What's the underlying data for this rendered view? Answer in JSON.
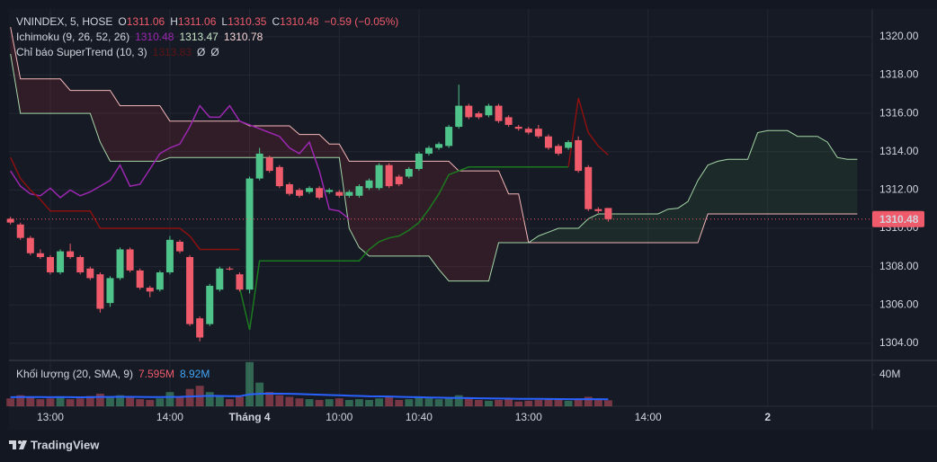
{
  "header": {
    "symbol": "VNINDEX, 5, HOSE",
    "ohlc_labels": [
      "O",
      "H",
      "L",
      "C"
    ],
    "change": "−0.59 (−0.05%)"
  },
  "footer": {
    "brand": "TradingView"
  },
  "chart_data": [
    {
      "type": "candlestick",
      "up_color": "#4fc48a",
      "down_color": "#f05b6b",
      "open": [
        1310.5,
        1310.2,
        1309.5,
        1308.7,
        1308.5,
        1307.7,
        1308.8,
        1308.5,
        1307.9,
        1307.6,
        1306.1,
        1307.4,
        1308.9,
        1307.8,
        1306.9,
        1306.8,
        1307.7,
        1309.3,
        1308.5,
        1305.3,
        1305.0,
        1306.8,
        1307.9,
        1307.6,
        1306.8,
        1312.6,
        1313.7,
        1313.2,
        1312.3,
        1312.0,
        1311.9,
        1312.1,
        1311.9,
        1311.9,
        1311.7,
        1311.7,
        1312.1,
        1312.1,
        1313.3,
        1312.7,
        1312.7,
        1313.1,
        1313.9,
        1314.2,
        1314.3,
        1315.3,
        1316.4,
        1316.0,
        1315.9,
        1316.4,
        1315.8,
        1315.3,
        1315.2,
        1315.2,
        1314.8,
        1314.3,
        1314.2,
        1314.6,
        1313.2,
        1311.0,
        1311.06
      ],
      "high": [
        1310.6,
        1310.3,
        1309.6,
        1308.9,
        1308.6,
        1308.9,
        1309.2,
        1308.6,
        1308.0,
        1307.7,
        1307.5,
        1309.0,
        1309.0,
        1307.9,
        1307.0,
        1307.8,
        1309.6,
        1309.4,
        1308.6,
        1305.4,
        1307.1,
        1308.0,
        1308.0,
        1307.7,
        1312.7,
        1314.2,
        1313.8,
        1313.3,
        1312.4,
        1312.1,
        1312.2,
        1312.2,
        1312.1,
        1312.0,
        1312.0,
        1312.3,
        1312.6,
        1313.4,
        1313.4,
        1312.8,
        1313.2,
        1314.0,
        1314.3,
        1314.5,
        1315.4,
        1317.5,
        1316.5,
        1316.1,
        1316.5,
        1316.5,
        1315.9,
        1315.4,
        1315.3,
        1315.4,
        1314.9,
        1314.4,
        1314.6,
        1314.8,
        1313.3,
        1311.1,
        1311.06
      ],
      "low": [
        1310.2,
        1309.4,
        1308.6,
        1308.4,
        1307.6,
        1307.6,
        1308.4,
        1307.6,
        1307.3,
        1305.6,
        1305.9,
        1307.3,
        1307.7,
        1306.8,
        1306.4,
        1306.7,
        1307.6,
        1308.7,
        1304.9,
        1304.1,
        1304.9,
        1306.7,
        1307.8,
        1306.7,
        1306.6,
        1312.5,
        1312.9,
        1312.1,
        1311.7,
        1311.6,
        1311.8,
        1311.5,
        1311.8,
        1311.6,
        1311.6,
        1311.6,
        1312.0,
        1312.0,
        1312.1,
        1312.2,
        1312.6,
        1313.0,
        1313.8,
        1314.1,
        1314.2,
        1315.2,
        1315.7,
        1315.7,
        1315.8,
        1315.5,
        1315.3,
        1315.1,
        1314.9,
        1314.7,
        1314.1,
        1313.8,
        1314.1,
        1312.9,
        1310.9,
        1310.8,
        1310.35
      ],
      "close": [
        1310.3,
        1309.5,
        1308.7,
        1308.5,
        1307.7,
        1308.8,
        1308.5,
        1307.7,
        1307.4,
        1305.8,
        1307.4,
        1308.9,
        1307.8,
        1306.9,
        1306.7,
        1307.7,
        1309.4,
        1308.8,
        1305.0,
        1304.3,
        1307.0,
        1307.9,
        1307.85,
        1306.8,
        1312.6,
        1313.9,
        1313.0,
        1312.2,
        1311.8,
        1311.7,
        1312.1,
        1311.6,
        1312.0,
        1311.7,
        1311.9,
        1312.2,
        1312.5,
        1313.3,
        1312.2,
        1312.3,
        1313.1,
        1313.9,
        1314.2,
        1314.4,
        1315.3,
        1316.4,
        1315.8,
        1315.8,
        1316.4,
        1315.6,
        1315.4,
        1315.2,
        1315.0,
        1314.8,
        1314.2,
        1313.9,
        1314.5,
        1313.0,
        1311.0,
        1310.9,
        1310.48
      ],
      "xlim": [
        -0.15,
        86.5
      ],
      "xticks": [
        {
          "value": 4,
          "label": "13:00"
        },
        {
          "value": 16,
          "label": "14:00"
        },
        {
          "value": 24,
          "label": "Tháng 4"
        },
        {
          "value": 33,
          "label": "10:00"
        },
        {
          "value": 41,
          "label": "10:40"
        },
        {
          "value": 52,
          "label": "13:00"
        },
        {
          "value": 64,
          "label": "14:00"
        },
        {
          "value": 76,
          "label": "2"
        }
      ],
      "ylim": [
        1303.15,
        1321.45
      ],
      "yticks": [
        {
          "value": 1304,
          "label": "1304.00"
        },
        {
          "value": 1306,
          "label": "1306.00"
        },
        {
          "value": 1308,
          "label": "1308.00"
        },
        {
          "value": 1310,
          "label": "1310.00"
        },
        {
          "value": 1312,
          "label": "1312.00"
        },
        {
          "value": 1314,
          "label": "1314.00"
        },
        {
          "value": 1316,
          "label": "1316.00"
        },
        {
          "value": 1318,
          "label": "1318.00"
        },
        {
          "value": 1320,
          "label": "1320.00"
        }
      ],
      "grid": true,
      "overlays": [
        {
          "type": "line",
          "color": "#9c27b0",
          "values": [
            1313.0,
            1312.2,
            1311.8,
            1311.7,
            1312.1,
            1311.6,
            1312.0,
            1311.7,
            1311.9,
            1312.2,
            1312.5,
            1313.3,
            1312.2,
            1312.3,
            1313.1,
            1313.9,
            1314.2,
            1314.4,
            1315.3,
            1316.4,
            1315.8,
            1315.8,
            1316.4,
            1315.6,
            1315.4,
            1315.2,
            1315.0,
            1314.8,
            1314.2,
            1313.9,
            1314.5,
            1313.0,
            1311.0,
            1310.9,
            1310.48
          ]
        },
        {
          "type": "cloud",
          "series": [
            {
              "color": "#f4b8b8",
              "fill": "rgba(242,54,69,0.12)",
              "values": [
                1320.5,
                1317.8,
                1317.8,
                1317.8,
                1317.8,
                1317.8,
                1317.2,
                1317.2,
                1317.2,
                1317.2,
                1317.2,
                1316.4,
                1316.4,
                1316.4,
                1316.4,
                1316.4,
                1315.6,
                1315.6,
                1315.6,
                1315.6,
                1315.6,
                1315.6,
                1315.6,
                1315.6,
                1315.35,
                1315.35,
                1315.35,
                1315.35,
                1315.35,
                1314.9,
                1314.9,
                1314.9,
                1314.4,
                1314.4,
                1313.5,
                1313.5,
                1313.5,
                1313.5,
                1313.5,
                1313.5,
                1313.5,
                1313.5,
                1313.5,
                1313.5,
                1313.5,
                1313.0,
                1313.0,
                1313.0,
                1313.0,
                1313.0,
                1311.8,
                1311.8,
                1309.25,
                1309.25,
                1309.25,
                1309.25,
                1309.25,
                1309.25,
                1309.25,
                1309.25,
                1309.25,
                1309.25,
                1309.25,
                1309.25,
                1309.25,
                1309.25,
                1309.25,
                1309.25,
                1309.25,
                1309.25,
                1310.75,
                1310.75,
                1310.75,
                1310.75,
                1310.75,
                1310.75,
                1310.75,
                1310.75,
                1310.75,
                1310.75,
                1310.75,
                1310.75,
                1310.75,
                1310.75,
                1310.75,
                1310.75
              ]
            },
            {
              "color": "#a5d6a7",
              "fill": "rgba(76,175,80,0.12)",
              "values": [
                1319.1,
                1316.0,
                1316.0,
                1316.0,
                1316.0,
                1316.0,
                1316.0,
                1316.0,
                1316.0,
                1314.5,
                1313.5,
                1313.5,
                1313.5,
                1313.5,
                1313.5,
                1313.5,
                1313.7,
                1313.7,
                1313.7,
                1313.7,
                1313.7,
                1313.7,
                1313.7,
                1313.7,
                1313.7,
                1313.7,
                1313.7,
                1313.7,
                1313.7,
                1313.7,
                1313.7,
                1313.7,
                1313.7,
                1313.7,
                1310.0,
                1309.0,
                1308.55,
                1308.55,
                1308.55,
                1308.55,
                1308.55,
                1308.55,
                1308.55,
                1307.85,
                1307.25,
                1307.25,
                1307.25,
                1307.25,
                1307.25,
                1309.25,
                1309.25,
                1309.25,
                1309.25,
                1309.6,
                1309.8,
                1310.0,
                1310.0,
                1310.0,
                1310.5,
                1310.75,
                1310.75,
                1310.75,
                1310.75,
                1310.75,
                1310.75,
                1310.75,
                1311.0,
                1311.05,
                1311.4,
                1312.5,
                1313.3,
                1313.5,
                1313.6,
                1313.6,
                1313.6,
                1315.0,
                1315.1,
                1315.1,
                1315.1,
                1314.8,
                1314.8,
                1314.8,
                1314.5,
                1313.7,
                1313.6,
                1313.6
              ]
            }
          ]
        },
        {
          "type": "line",
          "color": "#1b7a1f",
          "values": [
            null,
            null,
            null,
            null,
            null,
            null,
            null,
            null,
            null,
            null,
            null,
            null,
            null,
            null,
            null,
            null,
            null,
            null,
            null,
            null,
            null,
            null,
            null,
            1306.9,
            1304.7,
            1308.3,
            1308.3,
            1308.3,
            1308.3,
            1308.3,
            1308.3,
            1308.3,
            1308.3,
            1308.3,
            1308.3,
            1308.3,
            1308.9,
            1309.3,
            1309.5,
            1309.6,
            1309.9,
            1310.3,
            1311.0,
            1311.8,
            1312.8,
            1313.0,
            1313.2,
            1313.2,
            1313.2,
            1313.2,
            1313.2,
            1313.2,
            1313.2,
            1313.2,
            1313.2,
            1313.2,
            1313.2,
            null,
            null,
            null,
            null
          ]
        },
        {
          "type": "line",
          "color": "#8b1010",
          "values": [
            1313.7,
            1312.6,
            1312.0,
            1311.5,
            1310.9,
            1310.9,
            1310.9,
            1310.9,
            1310.9,
            1310.0,
            1310.0,
            1310.0,
            1310.0,
            1310.0,
            1310.0,
            1310.0,
            1310.0,
            1310.0,
            1309.6,
            1308.9,
            1308.9,
            1308.9,
            1308.9,
            1308.9,
            null,
            null,
            null,
            null,
            null,
            null,
            null,
            null,
            null,
            null,
            null,
            null,
            null,
            null,
            null,
            null,
            null,
            null,
            null,
            null,
            null,
            null,
            null,
            null,
            null,
            null,
            null,
            null,
            null,
            null,
            null,
            null,
            1313.2,
            1316.8,
            1315.0,
            1314.3,
            1313.83
          ]
        }
      ],
      "legend": [
        {
          "name": "Ichimoku (9, 26, 52, 26)",
          "readouts": [
            {
              "value": 1310.48,
              "color": "#9c27b0"
            },
            {
              "value": 1313.47,
              "color": "#c8e6c9"
            },
            {
              "value": 1310.78,
              "color": "#f8d7d7"
            }
          ]
        },
        {
          "name": "Chỉ báo SuperTrend (10, 3)",
          "readouts": [
            {
              "value": 1313.83,
              "color": "#5c1414"
            }
          ],
          "flags": [
            "Ø",
            "Ø"
          ]
        }
      ]
    },
    {
      "type": "bar",
      "title": "Khối lượng (20, SMA, 9)",
      "up_color": "rgba(79,196,138,0.45)",
      "down_color": "rgba(240,91,107,0.45)",
      "values": [
        10,
        14,
        12,
        9,
        10,
        12,
        9,
        10,
        13,
        16,
        12,
        14,
        11,
        9,
        8,
        10,
        18,
        12,
        22,
        26,
        18,
        12,
        9,
        12,
        56,
        30,
        18,
        14,
        12,
        10,
        9,
        8,
        9,
        10,
        8,
        9,
        8,
        10,
        12,
        8,
        9,
        12,
        10,
        9,
        11,
        14,
        10,
        8,
        7,
        8,
        9,
        6,
        7,
        8,
        9,
        8,
        7,
        9,
        12,
        8,
        7.595
      ],
      "sma": {
        "color": "#2962ff",
        "values": [
          11.5,
          11.6,
          11.7,
          11.6,
          11.5,
          11.6,
          11.5,
          11.4,
          11.5,
          11.8,
          11.9,
          12.0,
          12.0,
          11.9,
          11.7,
          11.6,
          11.9,
          12.0,
          12.4,
          12.9,
          13.2,
          13.1,
          12.9,
          12.8,
          15.0,
          15.8,
          16.1,
          16.0,
          15.8,
          15.5,
          15.1,
          14.7,
          14.3,
          13.9,
          13.5,
          13.1,
          12.7,
          12.5,
          12.4,
          12.0,
          11.6,
          11.5,
          11.2,
          10.9,
          10.7,
          10.6,
          10.4,
          10.2,
          10.0,
          9.8,
          9.7,
          9.5,
          9.4,
          9.3,
          9.2,
          9.1,
          9.0,
          9.0,
          9.05,
          8.95,
          8.92
        ]
      },
      "readouts": [
        {
          "value": 7.595,
          "label": "7.595M",
          "color": "#f05b6b"
        },
        {
          "value": 8.92,
          "label": "8.92M",
          "color": "#42a5f5"
        }
      ],
      "ylim": [
        0,
        57
      ],
      "yticks": [
        {
          "value": 40,
          "label": "40M"
        }
      ]
    }
  ]
}
